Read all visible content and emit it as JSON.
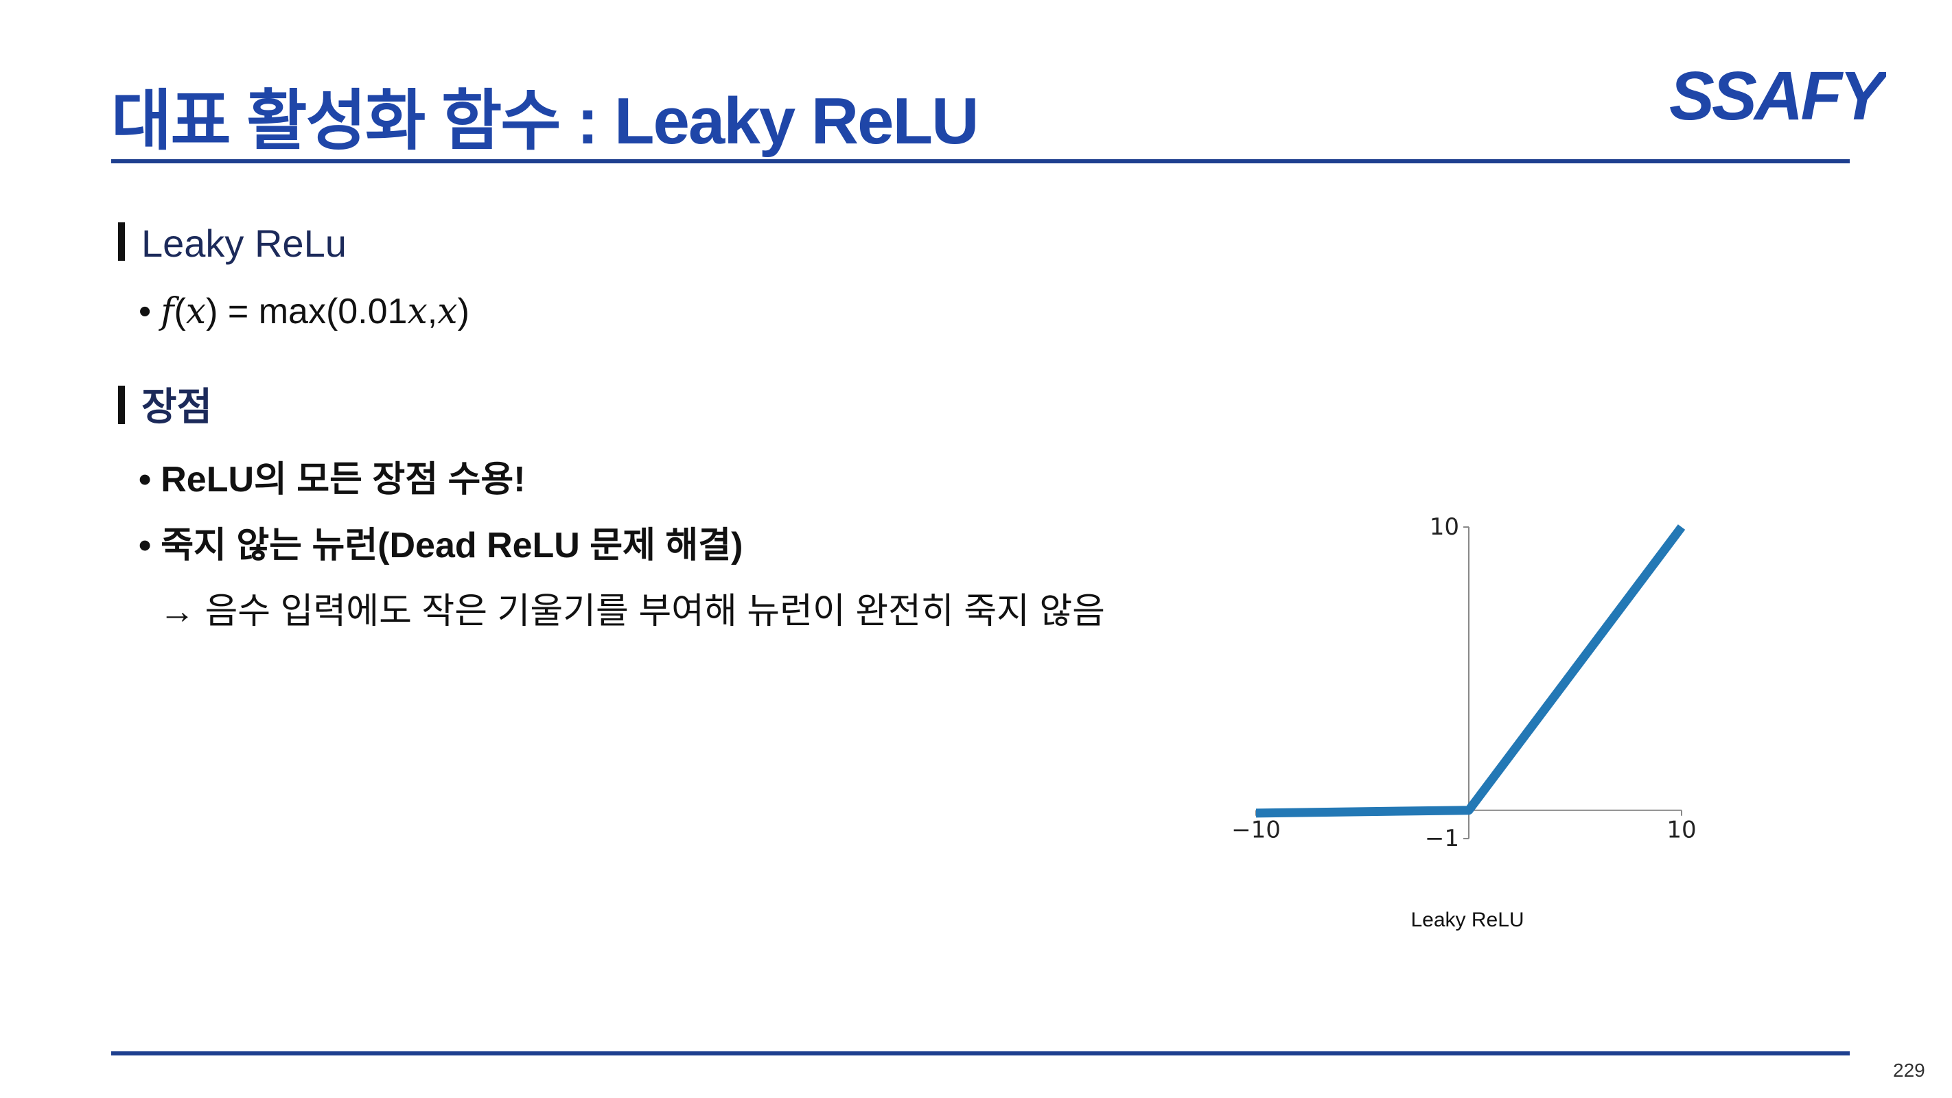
{
  "slide": {
    "title": "대표 활성화 함수 : Leaky ReLU",
    "logo_text": "SSAFY",
    "page_number": "229"
  },
  "sections": {
    "definition": {
      "heading": "Leaky ReLu",
      "formula": {
        "f": "f",
        "x": "x",
        "mid": ") = max(0.01",
        "comma": ",",
        "close": ")"
      }
    },
    "advantages": {
      "heading": "장점",
      "items": [
        "ReLU의 모든 장점 수용!",
        "죽지 않는 뉴런(Dead ReLU 문제 해결)"
      ],
      "detail": "→ 음수 입력에도 작은 기울기를 부여해 뉴런이 완전히 죽지 않음"
    }
  },
  "colors": {
    "title": "#1f46a8",
    "rule": "#1e3f8f",
    "line": "#2378b5"
  },
  "chart_data": {
    "type": "line",
    "title": "",
    "xlabel": "Leaky ReLU",
    "ylabel": "",
    "xlim": [
      -10,
      10
    ],
    "ylim": [
      -1,
      10
    ],
    "x_ticks": [
      "−10",
      "10"
    ],
    "y_ticks": [
      "−1",
      "10"
    ],
    "grid": false,
    "series": [
      {
        "x": [
          -10,
          0,
          10
        ],
        "y": [
          -0.1,
          0,
          10
        ]
      }
    ]
  }
}
